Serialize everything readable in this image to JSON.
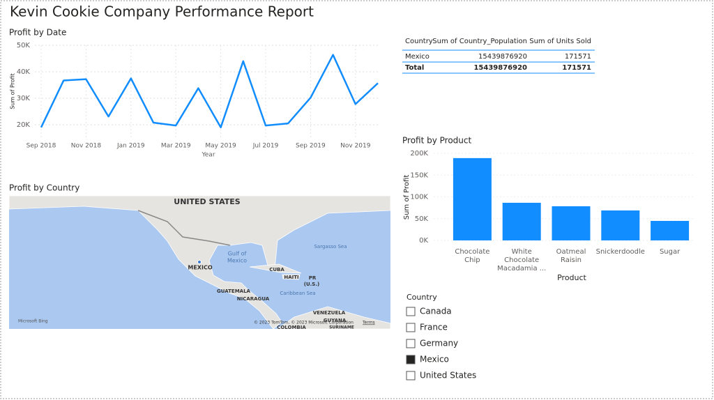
{
  "title": "Kevin Cookie Company Performance Report",
  "chart_data": [
    {
      "type": "line",
      "title": "Profit by Date",
      "xlabel": "Year",
      "ylabel": "Sum of Profit",
      "color": "#118dff",
      "grid": true,
      "categories": [
        "Sep 2018",
        null,
        "Nov 2018",
        null,
        "Jan 2019",
        null,
        "Mar 2019",
        null,
        "May 2019",
        null,
        "Jul 2019",
        null,
        "Sep 2019",
        null,
        "Nov 2019",
        null
      ],
      "values": [
        19000,
        36700,
        37200,
        23100,
        37500,
        20800,
        19700,
        33800,
        19000,
        44000,
        19700,
        20500,
        30200,
        46400,
        27800,
        35700
      ],
      "ylim": [
        15000,
        50000
      ],
      "yticks": [
        {
          "value": 20000,
          "label": "20K"
        },
        {
          "value": 30000,
          "label": "30K"
        },
        {
          "value": 40000,
          "label": "40K"
        },
        {
          "value": 50000,
          "label": "50K"
        }
      ]
    },
    {
      "type": "bar",
      "title": "Profit by Product",
      "xlabel": "Product",
      "ylabel": "Sum of Profit",
      "color": "#118dff",
      "categories": [
        "Chocolate Chip",
        "White Chocolate Macadamia ...",
        "Oatmeal Raisin",
        "Snickerdoodle",
        "Sugar"
      ],
      "values": [
        189000,
        86400,
        78400,
        68800,
        44800
      ],
      "ylim": [
        0,
        200000
      ],
      "yticks": [
        {
          "value": 0,
          "label": "0K"
        },
        {
          "value": 50000,
          "label": "50K"
        },
        {
          "value": 100000,
          "label": "100K"
        },
        {
          "value": 150000,
          "label": "150K"
        },
        {
          "value": 200000,
          "label": "200K"
        }
      ]
    }
  ],
  "map": {
    "title": "Profit by Country",
    "labels": [
      "UNITED STATES",
      "Gulf of",
      "Mexico",
      "Sargasso Sea",
      "MEXICO",
      "CUBA",
      "HAITI",
      "PR",
      "(U.S.)",
      "GUATEMALA",
      "NICARAGUA",
      "Caribbean Sea",
      "VENEZUELA",
      "GUYANA",
      "COLOMBIA",
      "SURINAME"
    ],
    "provider": "Microsoft Bing",
    "attribution": "© 2023 TomTom, © 2023 Microsoft Corporation",
    "terms": "Terms"
  },
  "table": {
    "columns": [
      "Country",
      "Sum of Country_Population",
      "Sum of Units Sold"
    ],
    "rows": [
      [
        "Mexico",
        15439876920,
        171571
      ]
    ],
    "total": [
      "Total",
      15439876920,
      171571
    ]
  },
  "slicer": {
    "title": "Country",
    "items": [
      "Canada",
      "France",
      "Germany",
      "Mexico",
      "United States"
    ],
    "selected": "Mexico"
  }
}
